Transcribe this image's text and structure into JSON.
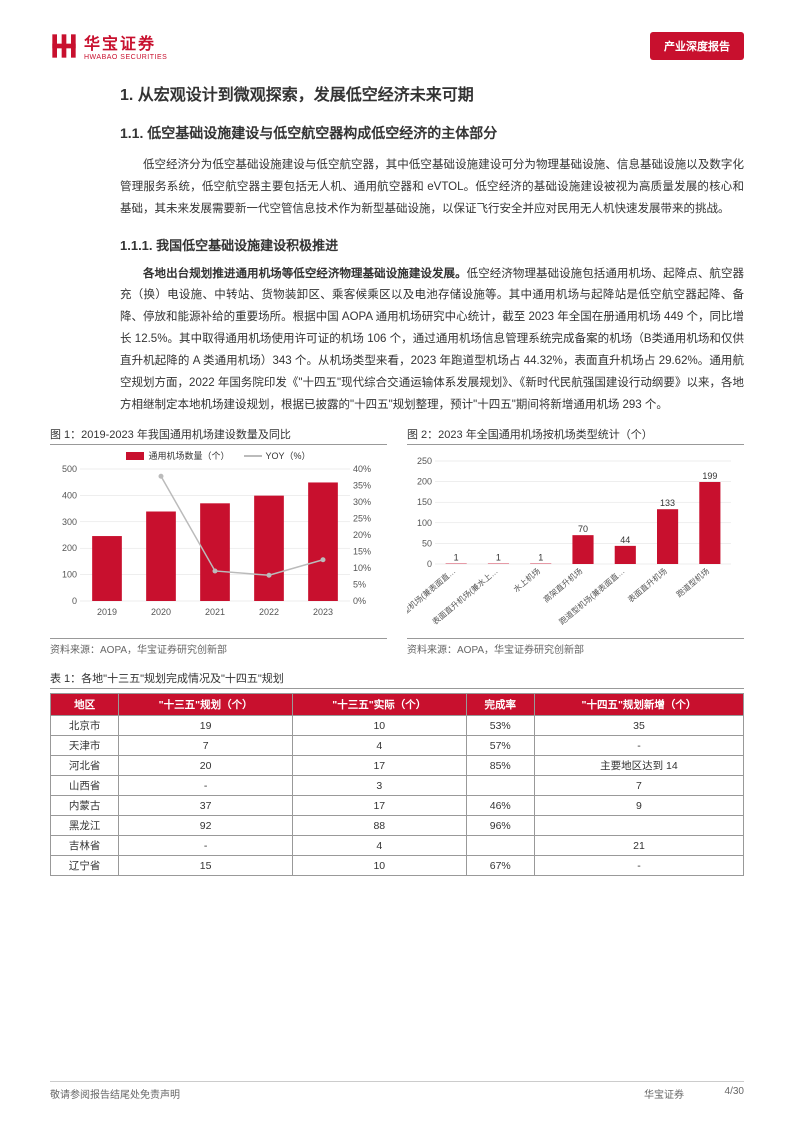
{
  "header": {
    "logo_cn": "华宝证券",
    "logo_en": "HWABAO SECURITIES",
    "tag": "产业深度报告"
  },
  "h1": "1. 从宏观设计到微观探索，发展低空经济未来可期",
  "h2": "1.1. 低空基础设施建设与低空航空器构成低空经济的主体部分",
  "p1": "低空经济分为低空基础设施建设与低空航空器，其中低空基础设施建设可分为物理基础设施、信息基础设施以及数字化管理服务系统，低空航空器主要包括无人机、通用航空器和 eVTOL。低空经济的基础设施建设被视为高质量发展的核心和基础，其未来发展需要新一代空管信息技术作为新型基础设施，以保证飞行安全并应对民用无人机快速发展带来的挑战。",
  "h3": "1.1.1. 我国低空基础设施建设积极推进",
  "p2_bold": "各地出台规划推进通用机场等低空经济物理基础设施建设发展。",
  "p2_rest": "低空经济物理基础设施包括通用机场、起降点、航空器充（换）电设施、中转站、货物装卸区、乘客候乘区以及电池存储设施等。其中通用机场与起降站是低空航空器起降、备降、停放和能源补给的重要场所。根据中国 AOPA 通用机场研究中心统计，截至 2023 年全国在册通用机场 449 个，同比增长 12.5%。其中取得通用机场使用许可证的机场 106 个，通过通用机场信息管理系统完成备案的机场（B类通用机场和仅供直升机起降的 A 类通用机场）343 个。从机场类型来看，2023 年跑道型机场占 44.32%，表面直升机场占 29.62%。通用航空规划方面，2022 年国务院印发《\"十四五\"现代综合交通运输体系发展规划》、《新时代民航强国建设行动纲要》以来，各地方相继制定本地机场建设规划，根据已披露的\"十四五\"规划整理，预计\"十四五\"期间将新增通用机场 293 个。",
  "chart1": {
    "title": "图 1：2019-2023 年我国通用机场建设数量及同比",
    "legend_bar": "通用机场数量（个）",
    "legend_line": "YOY（%）",
    "years": [
      "2019",
      "2020",
      "2021",
      "2022",
      "2023"
    ],
    "counts": [
      246,
      339,
      370,
      399,
      449
    ],
    "count_max": 500,
    "yoy": [
      null,
      37.8,
      9.1,
      7.8,
      12.5
    ],
    "yoy_max": 40,
    "left_ticks": [
      0,
      100,
      200,
      300,
      400,
      500
    ],
    "right_ticks": [
      0,
      5,
      10,
      15,
      20,
      25,
      30,
      35,
      40
    ],
    "bar_color": "#c8102e",
    "line_color": "#bbbbbb",
    "source": "资料来源：AOPA，华宝证券研究创新部"
  },
  "chart2": {
    "title": "图 2：2023 年全国通用机场按机场类型统计（个）",
    "categories": [
      "跑道型机场(兼表面直…",
      "表面直升机场(兼水上…",
      "水上机场",
      "高架直升机场",
      "跑道型机场(兼表面直…",
      "表面直升机场",
      "跑道型机场"
    ],
    "values": [
      1,
      1,
      1,
      70,
      44,
      133,
      199
    ],
    "y_max": 250,
    "y_ticks": [
      0,
      50,
      100,
      150,
      200,
      250
    ],
    "bar_color": "#c8102e",
    "source": "资料来源：AOPA，华宝证券研究创新部"
  },
  "table": {
    "title": "表 1：各地\"十三五\"规划完成情况及\"十四五\"规划",
    "headers": [
      "地区",
      "\"十三五\"规划（个）",
      "\"十三五\"实际（个）",
      "完成率",
      "\"十四五\"规划新增（个）"
    ],
    "rows": [
      [
        "北京市",
        "19",
        "10",
        "53%",
        "35"
      ],
      [
        "天津市",
        "7",
        "4",
        "57%",
        "-"
      ],
      [
        "河北省",
        "20",
        "17",
        "85%",
        "主要地区达到 14"
      ],
      [
        "山西省",
        "-",
        "3",
        "",
        "7"
      ],
      [
        "内蒙古",
        "37",
        "17",
        "46%",
        "9"
      ],
      [
        "黑龙江",
        "92",
        "88",
        "96%",
        ""
      ],
      [
        "吉林省",
        "-",
        "4",
        "",
        "21"
      ],
      [
        "辽宁省",
        "15",
        "10",
        "67%",
        "-"
      ]
    ]
  },
  "footer": {
    "left": "敬请参阅报告结尾处免责声明",
    "center": "华宝证券",
    "right": "4/30"
  }
}
